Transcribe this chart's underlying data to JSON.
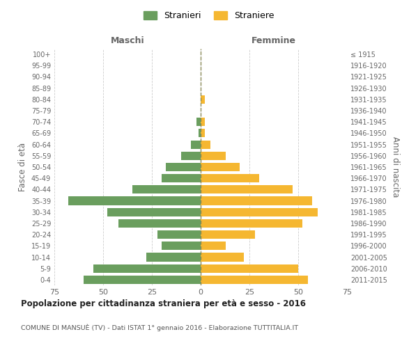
{
  "age_groups_bottom_to_top": [
    "0-4",
    "5-9",
    "10-14",
    "15-19",
    "20-24",
    "25-29",
    "30-34",
    "35-39",
    "40-44",
    "45-49",
    "50-54",
    "55-59",
    "60-64",
    "65-69",
    "70-74",
    "75-79",
    "80-84",
    "85-89",
    "90-94",
    "95-99",
    "100+"
  ],
  "birth_years_bottom_to_top": [
    "2011-2015",
    "2006-2010",
    "2001-2005",
    "1996-2000",
    "1991-1995",
    "1986-1990",
    "1981-1985",
    "1976-1980",
    "1971-1975",
    "1966-1970",
    "1961-1965",
    "1956-1960",
    "1951-1955",
    "1946-1950",
    "1941-1945",
    "1936-1940",
    "1931-1935",
    "1926-1930",
    "1921-1925",
    "1916-1920",
    "≤ 1915"
  ],
  "males_bottom_to_top": [
    60,
    55,
    28,
    20,
    22,
    42,
    48,
    68,
    35,
    20,
    18,
    10,
    5,
    1,
    2,
    0,
    0,
    0,
    0,
    0,
    0
  ],
  "females_bottom_to_top": [
    55,
    50,
    22,
    13,
    28,
    52,
    60,
    57,
    47,
    30,
    20,
    13,
    5,
    2,
    2,
    0,
    2,
    0,
    0,
    0,
    0
  ],
  "male_color": "#6a9e5e",
  "female_color": "#f5b731",
  "background_color": "#ffffff",
  "grid_color": "#cccccc",
  "title": "Popolazione per cittadinanza straniera per età e sesso - 2016",
  "subtitle": "COMUNE DI MANSUÈ (TV) - Dati ISTAT 1° gennaio 2016 - Elaborazione TUTTITALIA.IT",
  "ylabel_left": "Fasce di età",
  "ylabel_right": "Anni di nascita",
  "xlabel_left": "Maschi",
  "xlabel_right": "Femmine",
  "legend_male": "Stranieri",
  "legend_female": "Straniere",
  "xlim": 75,
  "label_color": "#666666",
  "center_line_color": "#888855"
}
